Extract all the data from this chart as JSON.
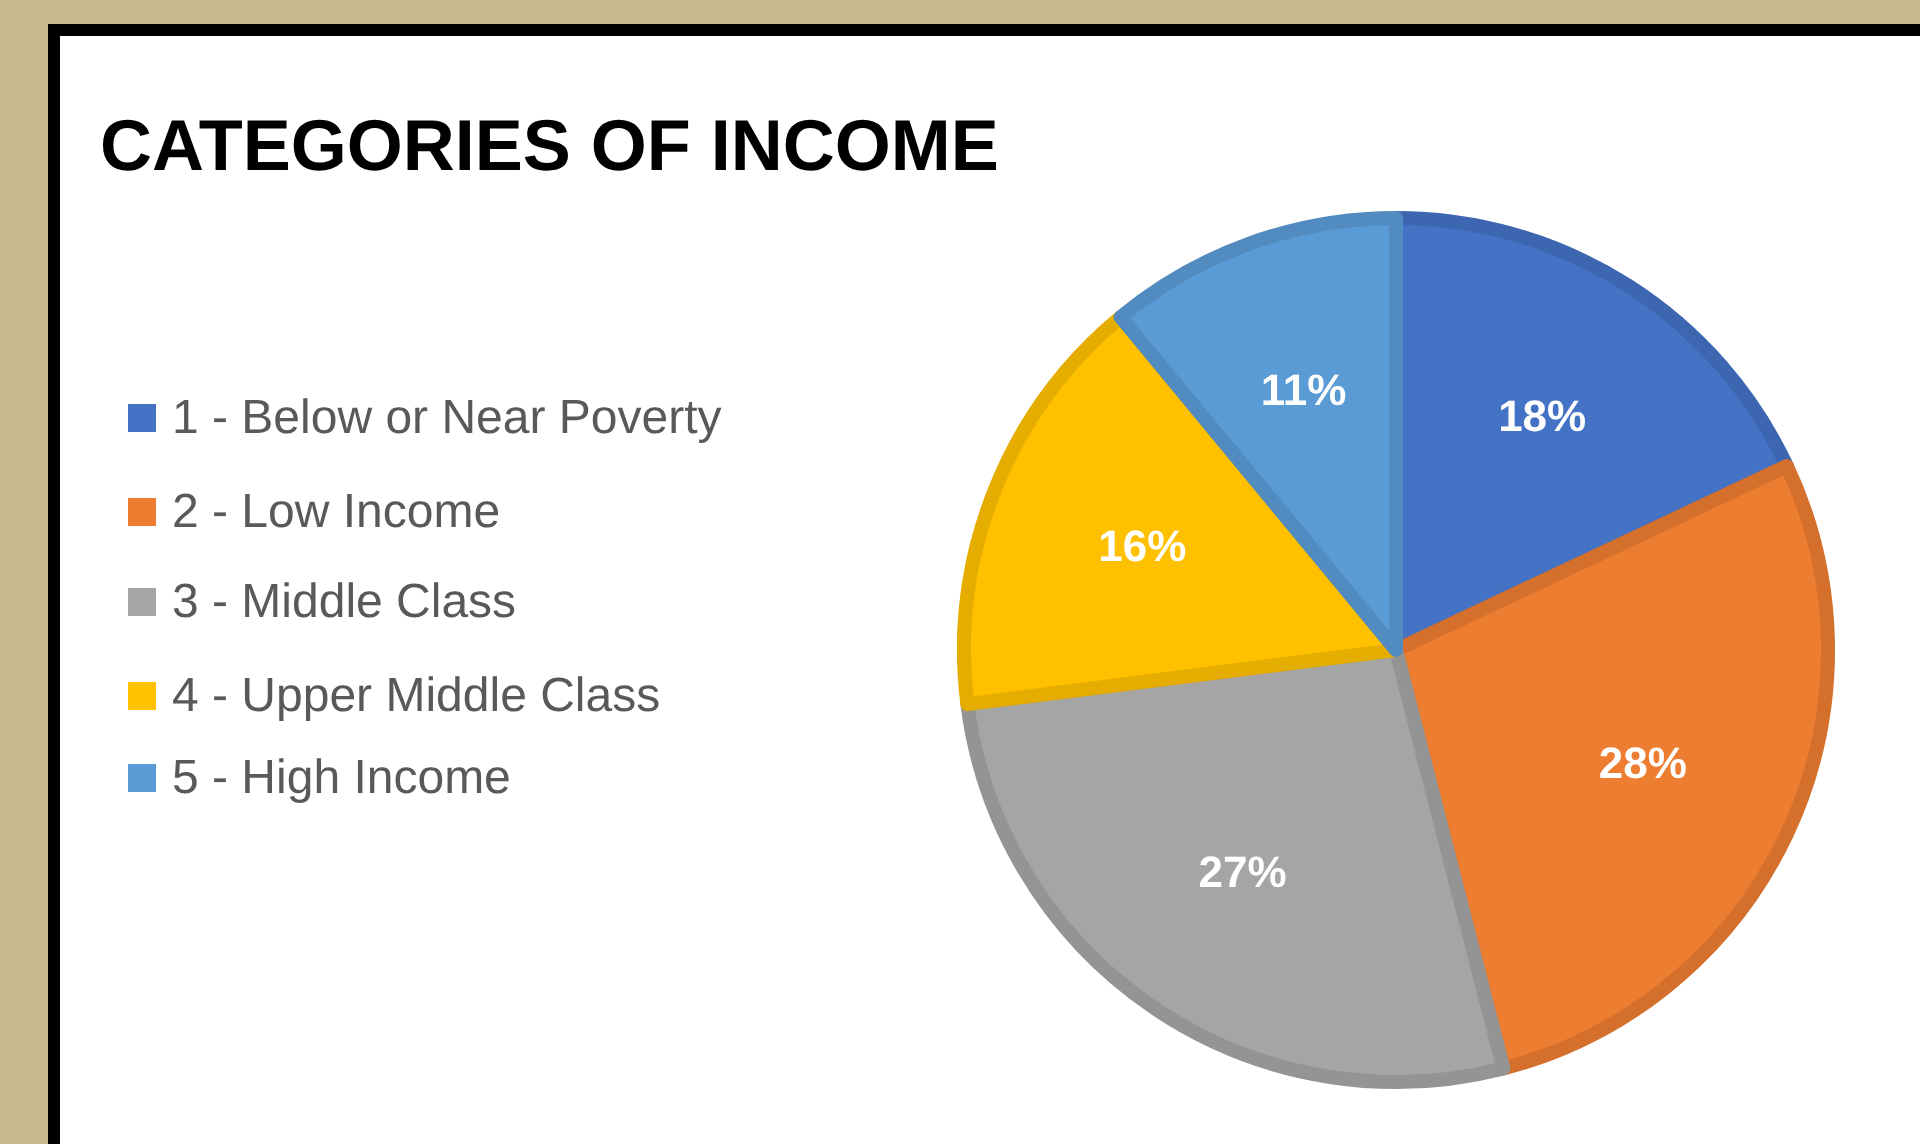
{
  "chart_data": {
    "type": "pie",
    "title": "CATEGORIES OF INCOME",
    "categories": [
      "1 - Below or Near Poverty",
      "2 - Low Income",
      "3 - Middle Class",
      "4 - Upper Middle Class",
      "5 - High Income"
    ],
    "values": [
      18,
      28,
      27,
      16,
      11
    ],
    "colors": [
      "#4472c4",
      "#ed7d31",
      "#a5a5a5",
      "#ffc000",
      "#5b9bd5"
    ],
    "value_labels": [
      "18%",
      "28%",
      "27%",
      "16%",
      "11%"
    ],
    "legend": "left"
  }
}
